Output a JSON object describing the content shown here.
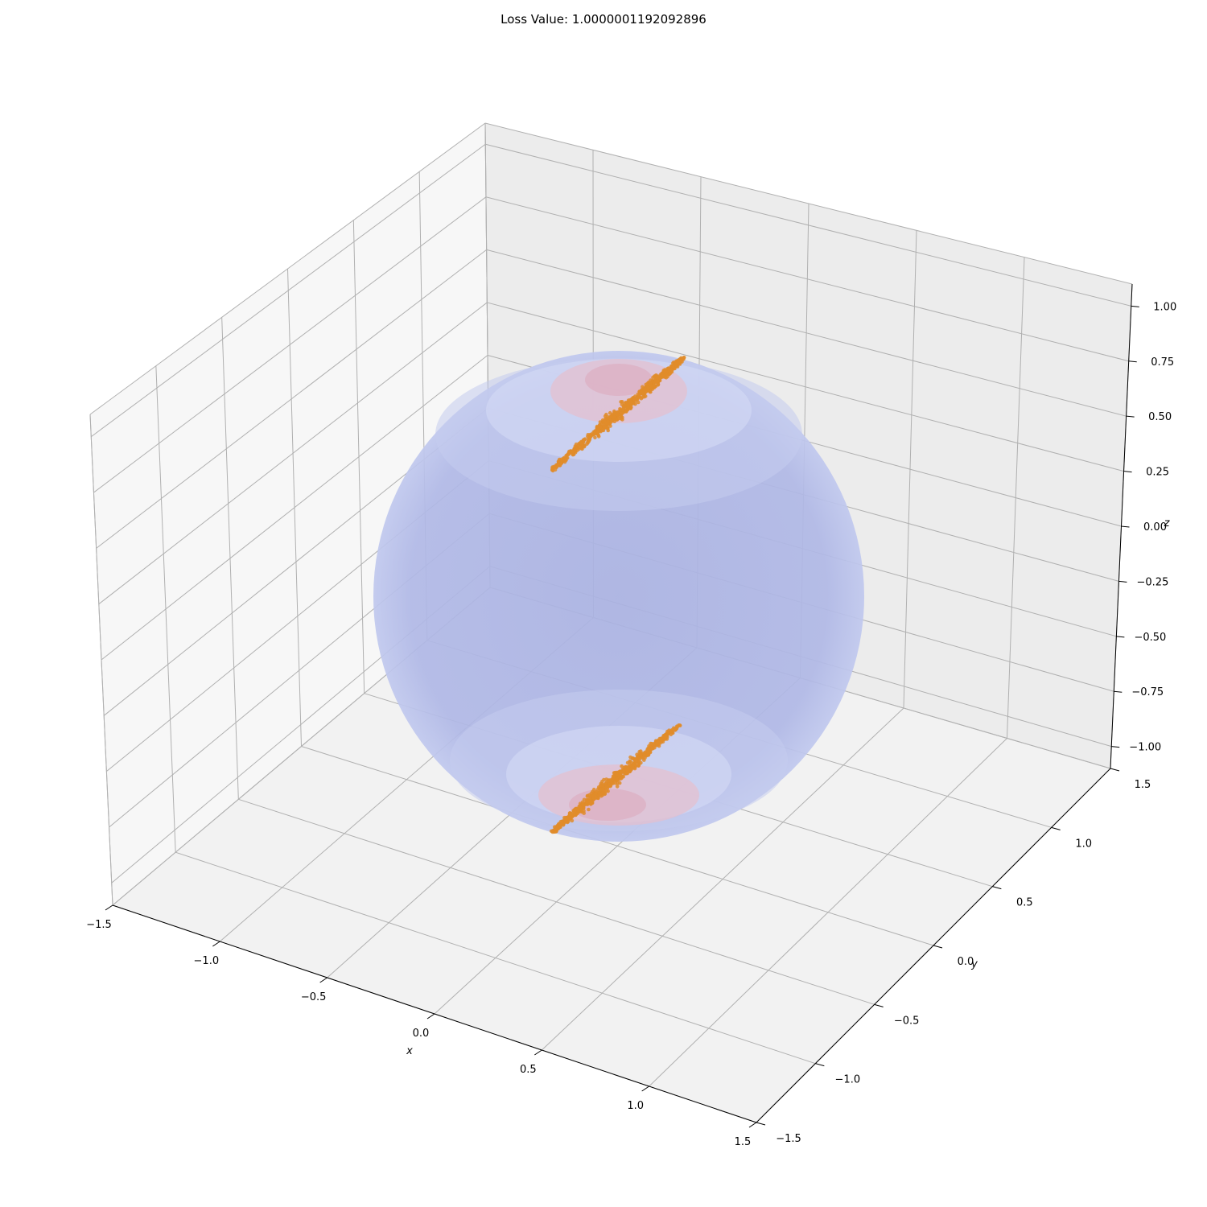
{
  "chart_data": {
    "type": "scatter",
    "projection": "3d",
    "title": "Loss Value: 1.0000001192092896",
    "xlabel": "x",
    "ylabel": "y",
    "zlabel": "z",
    "xlim": [
      -1.5,
      1.5
    ],
    "ylim": [
      -1.5,
      1.5
    ],
    "zlim": [
      -1.1,
      1.1
    ],
    "x_ticks": [
      "−1.5",
      "−1.0",
      "−0.5",
      "0.0",
      "0.5",
      "1.0",
      "1.5"
    ],
    "y_ticks": [
      "−1.5",
      "−1.0",
      "−0.5",
      "0.0",
      "0.5",
      "1.0",
      "1.5"
    ],
    "z_ticks": [
      "−1.00",
      "−0.75",
      "−0.50",
      "−0.25",
      "0.00",
      "0.25",
      "0.50",
      "0.75",
      "1.00"
    ],
    "grid": true,
    "surface": {
      "shape": "unit sphere",
      "color_low": "#b0b8e6",
      "color_high": "#e8b7c6"
    },
    "series": [
      {
        "marker_color": "#e08c2a",
        "clusters": [
          {
            "pole": "north",
            "approx_points": 600
          },
          {
            "pole": "south",
            "approx_points": 600
          }
        ]
      }
    ]
  }
}
